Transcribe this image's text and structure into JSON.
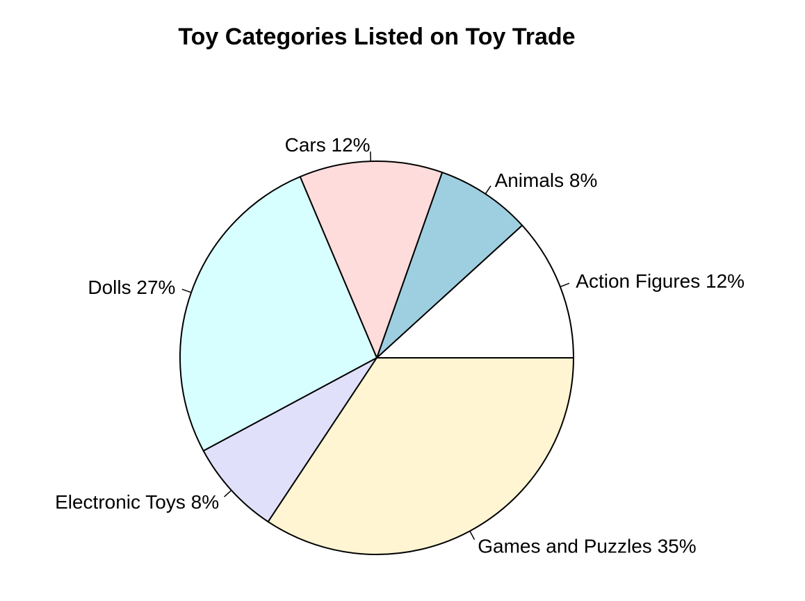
{
  "chart_data": {
    "type": "pie",
    "title": "Toy Categories Listed on Toy Trade",
    "direction": "counterclockwise",
    "start_angle_deg": 0,
    "slices": [
      {
        "name": "Action Figures",
        "value": 12,
        "label": "Action Figures 12%",
        "color": "#ffffff"
      },
      {
        "name": "Animals",
        "value": 8,
        "label": "Animals 8%",
        "color": "#9ecfe0"
      },
      {
        "name": "Cars",
        "value": 12,
        "label": "Cars 12%",
        "color": "#ffdcdc"
      },
      {
        "name": "Dolls",
        "value": 27,
        "label": "Dolls 27%",
        "color": "#d8ffff"
      },
      {
        "name": "Electronic Toys",
        "value": 8,
        "label": "Electronic Toys 8%",
        "color": "#e0e0fa"
      },
      {
        "name": "Games and Puzzles",
        "value": 35,
        "label": "Games and Puzzles 35%",
        "color": "#fff5d2"
      }
    ]
  }
}
